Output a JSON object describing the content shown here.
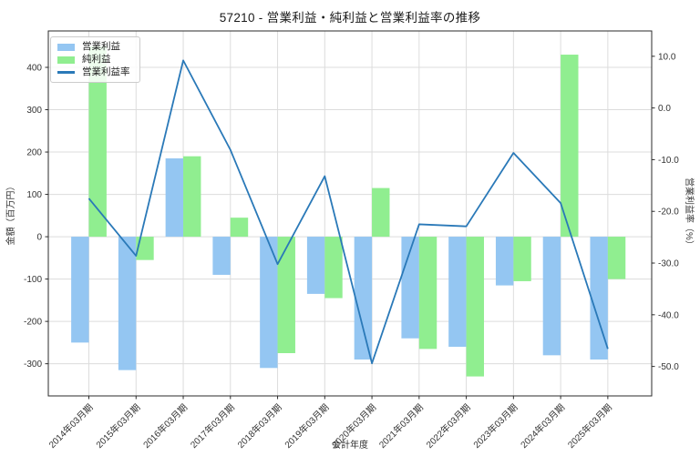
{
  "chart_data": {
    "type": "bar+line",
    "title": "57210 - 営業利益・純利益と営業利益率の推移",
    "xlabel": "会計年度",
    "ylabel_left": "金額（百万円）",
    "ylabel_right": "営業利益率（%）",
    "categories": [
      "2014年03月期",
      "2015年03月期",
      "2016年03月期",
      "2017年03月期",
      "2018年03月期",
      "2019年03月期",
      "2020年03月期",
      "2021年03月期",
      "2022年03月期",
      "2023年03月期",
      "2024年03月期",
      "2025年03月期"
    ],
    "series": [
      {
        "name": "営業利益",
        "type": "bar",
        "axis": "left",
        "color": "#94c6f2",
        "values": [
          -250,
          -315,
          185,
          -90,
          -310,
          -135,
          -290,
          -240,
          -260,
          -115,
          -280,
          -290
        ]
      },
      {
        "name": "純利益",
        "type": "bar",
        "axis": "left",
        "color": "#90ee90",
        "values": [
          450,
          -55,
          190,
          45,
          -275,
          -145,
          115,
          -265,
          -330,
          -105,
          430,
          -100
        ]
      },
      {
        "name": "営業利益率",
        "type": "line",
        "axis": "right",
        "color": "#2a79b8",
        "values": [
          -17.5,
          -28.6,
          9.2,
          -8.1,
          -30.2,
          -13.2,
          -49.4,
          -22.5,
          -22.9,
          -8.7,
          -18.4,
          -46.6
        ]
      }
    ],
    "yticks_left": [
      400,
      300,
      200,
      100,
      0,
      -100,
      -200,
      -300
    ],
    "ytick_labels_left": [
      "400",
      "300",
      "200",
      "100",
      "0",
      "-100",
      "-200",
      "-300"
    ],
    "yticks_right": [
      10,
      0,
      -10,
      -20,
      -30,
      -40,
      -50
    ],
    "ytick_labels_right": [
      "10.0",
      "0.0",
      "-10.0",
      "-20.0",
      "-30.0",
      "-40.0",
      "-50.0"
    ],
    "ylim_left": [
      -376,
      486
    ],
    "ylim_right": [
      -55.7,
      14.9
    ],
    "grid": true,
    "legend_position": "upper-left",
    "colors": {
      "grid": "#dcdcdc",
      "axis_border": "#2b2b2b",
      "tick_text": "#333333",
      "title_text": "#1a1a1a"
    }
  }
}
